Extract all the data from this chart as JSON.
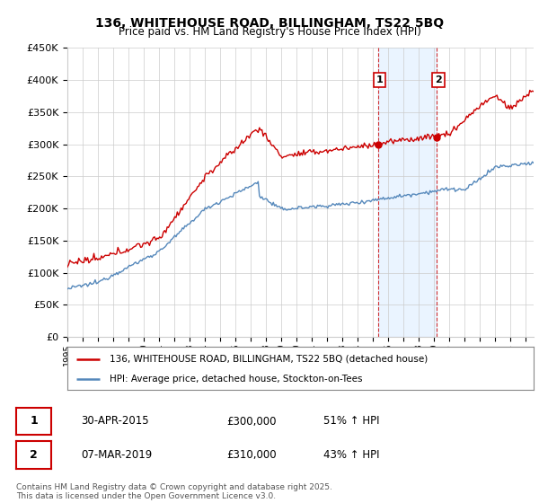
{
  "title": "136, WHITEHOUSE ROAD, BILLINGHAM, TS22 5BQ",
  "subtitle": "Price paid vs. HM Land Registry's House Price Index (HPI)",
  "legend_line1": "136, WHITEHOUSE ROAD, BILLINGHAM, TS22 5BQ (detached house)",
  "legend_line2": "HPI: Average price, detached house, Stockton-on-Tees",
  "footer": "Contains HM Land Registry data © Crown copyright and database right 2025.\nThis data is licensed under the Open Government Licence v3.0.",
  "transaction1": {
    "label": "1",
    "date": "30-APR-2015",
    "price": 300000,
    "hpi_change": "51% ↑ HPI",
    "year": 2015.33
  },
  "transaction2": {
    "label": "2",
    "date": "07-MAR-2019",
    "price": 310000,
    "hpi_change": "43% ↑ HPI",
    "year": 2019.17
  },
  "red_line_color": "#cc0000",
  "blue_line_color": "#5588bb",
  "blue_fill_color": "#ddeeff",
  "highlight_color": "#ddeeff",
  "grid_color": "#cccccc",
  "background_color": "#ffffff",
  "ylim": [
    0,
    450000
  ],
  "xlim_start": 1995.0,
  "xlim_end": 2025.5,
  "yticks": [
    0,
    50000,
    100000,
    150000,
    200000,
    250000,
    300000,
    350000,
    400000,
    450000
  ]
}
